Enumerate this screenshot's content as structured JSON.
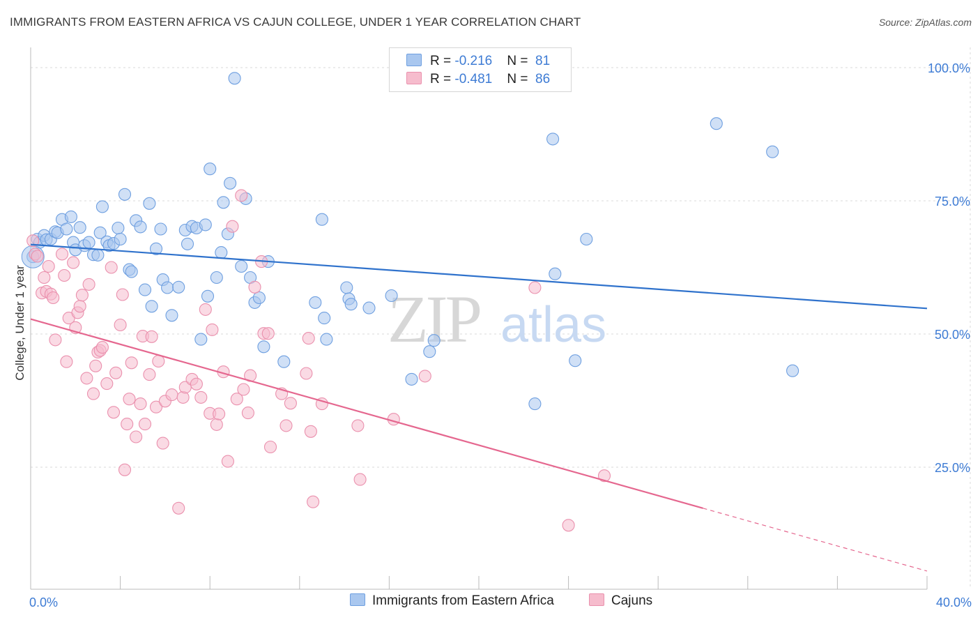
{
  "title": "IMMIGRANTS FROM EASTERN AFRICA VS CAJUN COLLEGE, UNDER 1 YEAR CORRELATION CHART",
  "source": "Source: ZipAtlas.com",
  "watermark": {
    "zip": "ZIP",
    "atlas": "atlas"
  },
  "legend_top": {
    "rows": [
      {
        "r_label": "R = ",
        "r_value": "-0.216",
        "n_label": "N = ",
        "n_value": "81"
      },
      {
        "r_label": "R = ",
        "r_value": "-0.481",
        "n_label": "N = ",
        "n_value": "86"
      }
    ]
  },
  "colors": {
    "blue_fill": "#a9c7ef",
    "blue_stroke": "#6e9fe0",
    "blue_line": "#2f72cc",
    "pink_fill": "#f6bccd",
    "pink_stroke": "#ea90ad",
    "pink_line": "#e5678f",
    "tick_label": "#3d7bd4",
    "grid": "#d9d9d9"
  },
  "chart_data": {
    "type": "scatter",
    "title": "IMMIGRANTS FROM EASTERN AFRICA VS CAJUN COLLEGE, UNDER 1 YEAR CORRELATION CHART",
    "xlabel": "",
    "ylabel": "College, Under 1 year",
    "xlim": [
      0,
      40
    ],
    "ylim": [
      0,
      105
    ],
    "x_tick_labels": [
      "0.0%",
      "40.0%"
    ],
    "y_ticks": [
      25,
      50,
      75,
      100
    ],
    "y_tick_labels": [
      "25.0%",
      "50.0%",
      "75.0%",
      "100.0%"
    ],
    "grid": true,
    "legend_position": "bottom",
    "series": [
      {
        "name": "Immigrants from Eastern Africa",
        "r": -0.216,
        "n": 81,
        "trend": {
          "x0": 0,
          "y0": 66.8,
          "x1": 40,
          "y1": 54.8
        },
        "points": [
          [
            0.1,
            64.5
          ],
          [
            0.3,
            67.8
          ],
          [
            0.4,
            67.2
          ],
          [
            0.6,
            68.5
          ],
          [
            0.7,
            67.7
          ],
          [
            0.9,
            67.8
          ],
          [
            1.1,
            69.2
          ],
          [
            1.2,
            69.0
          ],
          [
            1.4,
            71.5
          ],
          [
            1.6,
            69.7
          ],
          [
            1.8,
            72.0
          ],
          [
            1.9,
            67.2
          ],
          [
            2.0,
            65.8
          ],
          [
            2.2,
            70.0
          ],
          [
            2.4,
            66.6
          ],
          [
            2.6,
            67.2
          ],
          [
            2.8,
            64.9
          ],
          [
            3.0,
            64.8
          ],
          [
            3.1,
            69.0
          ],
          [
            3.2,
            73.9
          ],
          [
            3.4,
            67.3
          ],
          [
            3.5,
            66.6
          ],
          [
            3.7,
            67.0
          ],
          [
            3.9,
            69.9
          ],
          [
            4.0,
            67.8
          ],
          [
            4.2,
            76.2
          ],
          [
            4.4,
            62.1
          ],
          [
            4.5,
            61.7
          ],
          [
            4.7,
            71.3
          ],
          [
            4.9,
            70.1
          ],
          [
            5.1,
            58.3
          ],
          [
            5.3,
            74.5
          ],
          [
            5.4,
            55.2
          ],
          [
            5.6,
            66.0
          ],
          [
            5.8,
            69.7
          ],
          [
            5.9,
            60.2
          ],
          [
            6.1,
            58.7
          ],
          [
            6.3,
            53.5
          ],
          [
            6.6,
            58.8
          ],
          [
            6.9,
            69.5
          ],
          [
            7.0,
            66.9
          ],
          [
            7.2,
            70.2
          ],
          [
            7.4,
            69.9
          ],
          [
            7.6,
            49.0
          ],
          [
            7.8,
            70.5
          ],
          [
            7.9,
            57.1
          ],
          [
            8.0,
            81.0
          ],
          [
            8.3,
            60.6
          ],
          [
            8.5,
            65.3
          ],
          [
            8.6,
            74.7
          ],
          [
            8.8,
            68.8
          ],
          [
            8.9,
            78.3
          ],
          [
            9.1,
            98.0
          ],
          [
            9.4,
            62.7
          ],
          [
            9.6,
            75.4
          ],
          [
            9.8,
            60.6
          ],
          [
            10.0,
            55.9
          ],
          [
            10.2,
            56.8
          ],
          [
            10.4,
            47.6
          ],
          [
            10.6,
            63.6
          ],
          [
            11.3,
            44.8
          ],
          [
            12.7,
            55.9
          ],
          [
            13.0,
            71.5
          ],
          [
            13.1,
            53.0
          ],
          [
            13.2,
            49.0
          ],
          [
            14.1,
            58.7
          ],
          [
            14.2,
            56.6
          ],
          [
            14.3,
            55.6
          ],
          [
            15.1,
            54.9
          ],
          [
            16.1,
            57.2
          ],
          [
            17.0,
            41.5
          ],
          [
            17.8,
            46.7
          ],
          [
            18.0,
            48.8
          ],
          [
            22.5,
            36.9
          ],
          [
            23.3,
            86.6
          ],
          [
            23.4,
            61.3
          ],
          [
            24.3,
            45.0
          ],
          [
            24.8,
            67.8
          ],
          [
            30.6,
            89.5
          ],
          [
            33.1,
            84.2
          ],
          [
            34.0,
            43.1
          ]
        ]
      },
      {
        "name": "Cajuns",
        "r": -0.481,
        "n": 86,
        "trend": {
          "x0": 0,
          "y0": 52.8,
          "x1": 30.0,
          "y1": 17.3,
          "dash_x1": 40,
          "dash_y1": 5.5
        },
        "points": [
          [
            0.1,
            67.5
          ],
          [
            0.2,
            65.0
          ],
          [
            0.3,
            64.6
          ],
          [
            0.5,
            57.7
          ],
          [
            0.6,
            60.6
          ],
          [
            0.7,
            58.0
          ],
          [
            0.8,
            62.7
          ],
          [
            0.9,
            57.5
          ],
          [
            1.0,
            56.8
          ],
          [
            1.1,
            48.9
          ],
          [
            1.4,
            65.0
          ],
          [
            1.5,
            61.0
          ],
          [
            1.6,
            44.8
          ],
          [
            1.7,
            53.0
          ],
          [
            1.9,
            63.4
          ],
          [
            2.0,
            51.2
          ],
          [
            2.1,
            54.0
          ],
          [
            2.2,
            55.2
          ],
          [
            2.3,
            57.3
          ],
          [
            2.5,
            41.7
          ],
          [
            2.6,
            59.3
          ],
          [
            2.8,
            38.8
          ],
          [
            2.9,
            44.0
          ],
          [
            3.0,
            46.6
          ],
          [
            3.1,
            46.9
          ],
          [
            3.2,
            47.5
          ],
          [
            3.4,
            40.7
          ],
          [
            3.6,
            62.5
          ],
          [
            3.7,
            35.3
          ],
          [
            3.8,
            42.7
          ],
          [
            4.0,
            51.7
          ],
          [
            4.1,
            57.4
          ],
          [
            4.2,
            24.5
          ],
          [
            4.3,
            33.1
          ],
          [
            4.4,
            37.8
          ],
          [
            4.5,
            44.6
          ],
          [
            4.7,
            30.7
          ],
          [
            4.9,
            36.9
          ],
          [
            5.0,
            49.6
          ],
          [
            5.1,
            33.1
          ],
          [
            5.3,
            42.4
          ],
          [
            5.4,
            49.5
          ],
          [
            5.6,
            36.3
          ],
          [
            5.7,
            44.9
          ],
          [
            5.9,
            29.5
          ],
          [
            6.0,
            37.4
          ],
          [
            6.3,
            38.6
          ],
          [
            6.6,
            17.3
          ],
          [
            6.8,
            38.1
          ],
          [
            6.9,
            40.0
          ],
          [
            7.2,
            41.5
          ],
          [
            7.4,
            40.6
          ],
          [
            7.6,
            38.1
          ],
          [
            7.8,
            54.6
          ],
          [
            8.0,
            35.1
          ],
          [
            8.1,
            50.8
          ],
          [
            8.3,
            33.0
          ],
          [
            8.4,
            35.0
          ],
          [
            8.6,
            42.9
          ],
          [
            8.8,
            26.1
          ],
          [
            9.0,
            70.2
          ],
          [
            9.2,
            37.8
          ],
          [
            9.4,
            76.0
          ],
          [
            9.5,
            39.6
          ],
          [
            9.7,
            35.2
          ],
          [
            9.8,
            42.2
          ],
          [
            10.0,
            58.8
          ],
          [
            10.3,
            63.6
          ],
          [
            10.4,
            50.1
          ],
          [
            10.6,
            50.1
          ],
          [
            10.7,
            28.8
          ],
          [
            11.2,
            38.8
          ],
          [
            11.6,
            37.0
          ],
          [
            11.4,
            32.8
          ],
          [
            12.3,
            42.6
          ],
          [
            12.4,
            49.2
          ],
          [
            12.5,
            31.7
          ],
          [
            12.6,
            18.5
          ],
          [
            13.0,
            36.9
          ],
          [
            14.6,
            32.8
          ],
          [
            14.7,
            22.7
          ],
          [
            16.2,
            34.0
          ],
          [
            17.6,
            42.1
          ],
          [
            22.5,
            58.7
          ],
          [
            24.0,
            14.1
          ],
          [
            25.6,
            23.4
          ]
        ]
      }
    ]
  },
  "axis": {
    "ylabel": "College, Under 1 year",
    "x_left": "0.0%",
    "x_right": "40.0%"
  },
  "legend_bottom": {
    "items": [
      "Immigrants from Eastern Africa",
      "Cajuns"
    ]
  }
}
